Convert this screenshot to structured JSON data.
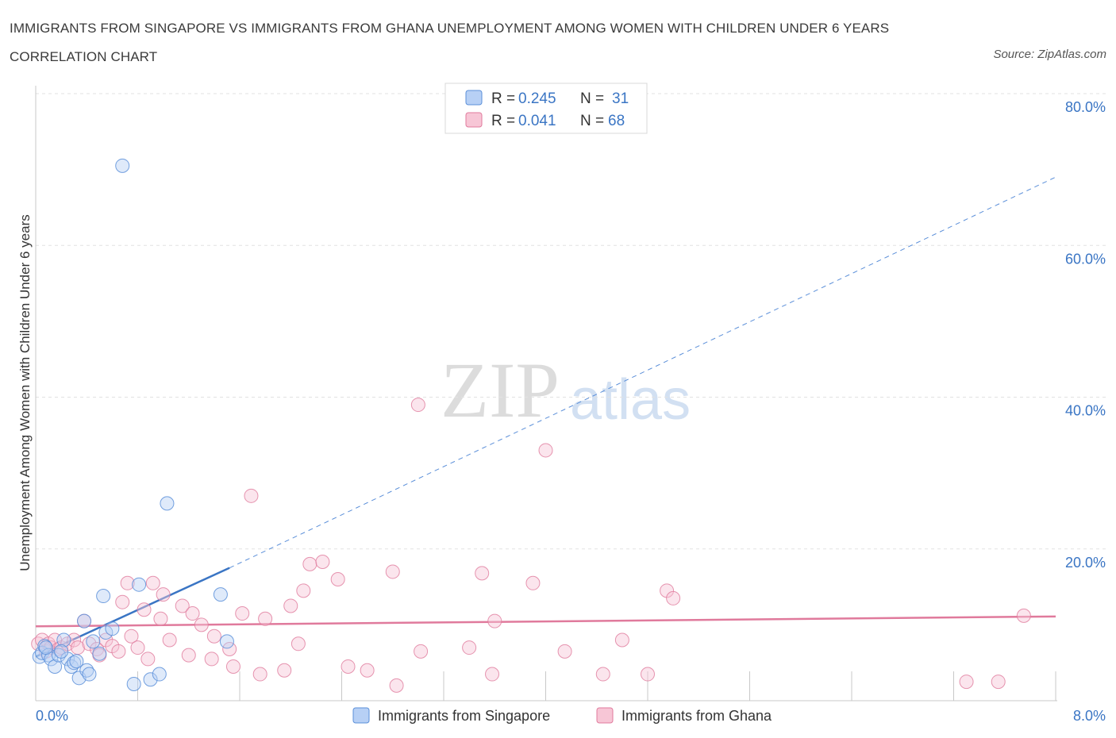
{
  "header": {
    "title": "IMMIGRANTS FROM SINGAPORE VS IMMIGRANTS FROM GHANA UNEMPLOYMENT AMONG WOMEN WITH CHILDREN UNDER 6 YEARS CORRELATION CHART",
    "source": "Source: ZipAtlas.com"
  },
  "watermark": {
    "zip": "ZIP",
    "atlas": "atlas"
  },
  "legend_top": [
    {
      "r_label": "R =",
      "r_value": "0.245",
      "n_label": "N =",
      "n_value": "31"
    },
    {
      "r_label": "R =",
      "r_value": "0.041",
      "n_label": "N =",
      "n_value": "68"
    }
  ],
  "chart_data": {
    "type": "scatter",
    "title": "Immigrants from Singapore vs Immigrants from Ghana Unemployment among Women with Children Under 6 years Correlation Chart",
    "xlabel": "",
    "ylabel": "Unemployment Among Women with Children Under 6 years",
    "xlim": [
      0,
      8
    ],
    "ylim": [
      0,
      80
    ],
    "x_tick_labels": [
      "0.0%",
      "8.0%"
    ],
    "y_ticks": [
      20,
      40,
      60,
      80
    ],
    "y_tick_labels": [
      "20.0%",
      "40.0%",
      "60.0%",
      "80.0%"
    ],
    "colors": {
      "singapore": "#5b8fd9",
      "singapore_fill": "#b7d0f5",
      "ghana": "#e07a9c",
      "ghana_fill": "#f7c6d6",
      "axis_text": "#3a75c4"
    },
    "series": [
      {
        "name": "Immigrants from Singapore",
        "points": [
          [
            0.03,
            5.8
          ],
          [
            0.05,
            6.3
          ],
          [
            0.07,
            7.2
          ],
          [
            0.1,
            6.0
          ],
          [
            0.12,
            5.5
          ],
          [
            0.15,
            4.5
          ],
          [
            0.18,
            6.0
          ],
          [
            0.22,
            8.0
          ],
          [
            0.25,
            5.5
          ],
          [
            0.28,
            4.5
          ],
          [
            0.3,
            5.0
          ],
          [
            0.32,
            5.2
          ],
          [
            0.34,
            3.0
          ],
          [
            0.38,
            10.5
          ],
          [
            0.4,
            4.0
          ],
          [
            0.42,
            3.5
          ],
          [
            0.45,
            7.8
          ],
          [
            0.5,
            6.2
          ],
          [
            0.53,
            13.8
          ],
          [
            0.55,
            9.0
          ],
          [
            0.6,
            9.5
          ],
          [
            0.68,
            70.5
          ],
          [
            0.77,
            2.2
          ],
          [
            0.81,
            15.3
          ],
          [
            0.9,
            2.8
          ],
          [
            0.97,
            3.5
          ],
          [
            1.03,
            26.0
          ],
          [
            1.45,
            14.0
          ],
          [
            1.5,
            7.8
          ],
          [
            0.08,
            7.0
          ],
          [
            0.2,
            6.5
          ]
        ],
        "trend": {
          "x0": 0.0,
          "y0": 5.8,
          "x1": 1.52,
          "y1": 17.5,
          "x_dash_end": 8.0,
          "y_dash_end": 69.0
        }
      },
      {
        "name": "Immigrants from Ghana",
        "points": [
          [
            0.02,
            7.5
          ],
          [
            0.05,
            8.0
          ],
          [
            0.08,
            6.5
          ],
          [
            0.1,
            7.5
          ],
          [
            0.12,
            7.0
          ],
          [
            0.15,
            8.0
          ],
          [
            0.18,
            6.8
          ],
          [
            0.2,
            7.0
          ],
          [
            0.25,
            7.5
          ],
          [
            0.3,
            8.0
          ],
          [
            0.33,
            7.0
          ],
          [
            0.38,
            10.5
          ],
          [
            0.42,
            7.5
          ],
          [
            0.48,
            6.8
          ],
          [
            0.5,
            6.0
          ],
          [
            0.55,
            8.0
          ],
          [
            0.6,
            7.2
          ],
          [
            0.65,
            6.5
          ],
          [
            0.68,
            13.0
          ],
          [
            0.72,
            15.5
          ],
          [
            0.75,
            8.5
          ],
          [
            0.8,
            7.0
          ],
          [
            0.85,
            12.0
          ],
          [
            0.88,
            5.5
          ],
          [
            0.92,
            15.5
          ],
          [
            0.98,
            10.8
          ],
          [
            1.0,
            14.0
          ],
          [
            1.05,
            8.0
          ],
          [
            1.15,
            12.5
          ],
          [
            1.2,
            6.0
          ],
          [
            1.23,
            11.5
          ],
          [
            1.3,
            10.0
          ],
          [
            1.38,
            5.5
          ],
          [
            1.4,
            8.5
          ],
          [
            1.55,
            4.5
          ],
          [
            1.52,
            6.8
          ],
          [
            1.62,
            11.5
          ],
          [
            1.69,
            27.0
          ],
          [
            1.76,
            3.5
          ],
          [
            1.8,
            10.8
          ],
          [
            1.95,
            4.0
          ],
          [
            2.0,
            12.5
          ],
          [
            2.06,
            7.5
          ],
          [
            2.1,
            14.5
          ],
          [
            2.15,
            18.0
          ],
          [
            2.25,
            18.3
          ],
          [
            2.37,
            16.0
          ],
          [
            2.45,
            4.5
          ],
          [
            2.6,
            4.0
          ],
          [
            2.8,
            17.0
          ],
          [
            2.83,
            2.0
          ],
          [
            3.0,
            39.0
          ],
          [
            3.02,
            6.5
          ],
          [
            3.4,
            7.0
          ],
          [
            3.5,
            16.8
          ],
          [
            3.58,
            3.5
          ],
          [
            3.6,
            10.5
          ],
          [
            3.9,
            15.5
          ],
          [
            4.0,
            33.0
          ],
          [
            4.15,
            6.5
          ],
          [
            4.45,
            3.5
          ],
          [
            4.6,
            8.0
          ],
          [
            4.8,
            3.5
          ],
          [
            4.95,
            14.5
          ],
          [
            5.0,
            13.5
          ],
          [
            7.3,
            2.5
          ],
          [
            7.55,
            2.5
          ],
          [
            7.75,
            11.2
          ]
        ],
        "trend": {
          "x0": 0.0,
          "y0": 9.8,
          "x1": 8.0,
          "y1": 11.1
        }
      }
    ]
  },
  "legend_bottom": [
    {
      "label": "Immigrants from Singapore"
    },
    {
      "label": "Immigrants from Ghana"
    }
  ]
}
